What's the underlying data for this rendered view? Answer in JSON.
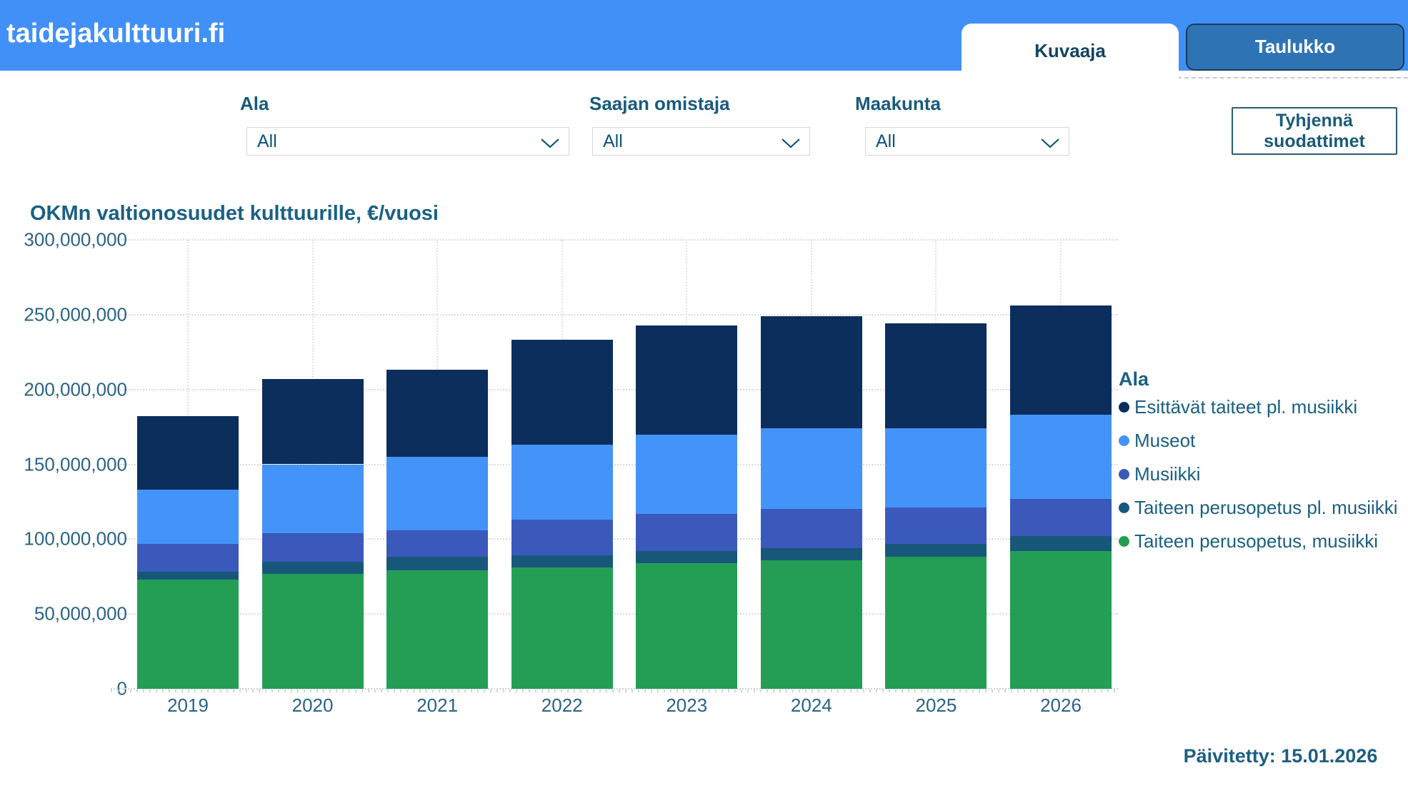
{
  "header": {
    "brand": "taidejakulttuuri.fi",
    "band_color": "#4190f8",
    "tabs": [
      {
        "label": "Kuvaaja",
        "active": true
      },
      {
        "label": "Taulukko",
        "active": false
      }
    ]
  },
  "filters": {
    "items": [
      {
        "label": "Ala",
        "value": "All"
      },
      {
        "label": "Saajan omistaja",
        "value": "All"
      },
      {
        "label": "Maakunta",
        "value": "All"
      }
    ],
    "clear_button_label": "Tyhjennä suodattimet"
  },
  "chart_data": {
    "type": "bar",
    "stacked": true,
    "title": "OKMn valtionosuudet kulttuurille, €/vuosi",
    "categories": [
      "2019",
      "2020",
      "2021",
      "2022",
      "2023",
      "2024",
      "2025",
      "2026"
    ],
    "series": [
      {
        "name": "Taiteen perusopetus, musiikki",
        "color": "#249e55",
        "values": [
          73000000,
          77000000,
          79000000,
          81000000,
          84000000,
          86000000,
          88000000,
          92000000
        ]
      },
      {
        "name": "Taiteen perusopetus pl. musiikki",
        "color": "#17587a",
        "values": [
          5000000,
          8000000,
          9000000,
          8000000,
          8000000,
          8000000,
          9000000,
          10000000
        ]
      },
      {
        "name": "Musiikki",
        "color": "#3a59bb",
        "values": [
          19000000,
          19000000,
          18000000,
          24000000,
          25000000,
          26000000,
          24000000,
          25000000
        ]
      },
      {
        "name": "Museot",
        "color": "#4493f8",
        "values": [
          36000000,
          46000000,
          49000000,
          50000000,
          53000000,
          54000000,
          53000000,
          56000000
        ]
      },
      {
        "name": "Esittävät taiteet pl. musiikki",
        "color": "#0c2e5c",
        "values": [
          49000000,
          57000000,
          58000000,
          70000000,
          73000000,
          75000000,
          70000000,
          73000000
        ]
      }
    ],
    "totals": [
      182000000,
      207000000,
      213000000,
      233000000,
      243000000,
      249000000,
      244000000,
      256000000
    ],
    "ylim": [
      0,
      300000000
    ],
    "ytick_step": 50000000,
    "ytick_labels": [
      "0",
      "50,000,000",
      "100,000,000",
      "150,000,000",
      "200,000,000",
      "250,000,000",
      "300,000,000"
    ],
    "grid": "dotted",
    "legend_title": "Ala",
    "legend_position": "right",
    "legend_order": [
      "Esittävät taiteet pl. musiikki",
      "Museot",
      "Musiikki",
      "Taiteen perusopetus pl. musiikki",
      "Taiteen perusopetus, musiikki"
    ]
  },
  "footer": {
    "updated": "Päivitetty: 15.01.2026"
  }
}
